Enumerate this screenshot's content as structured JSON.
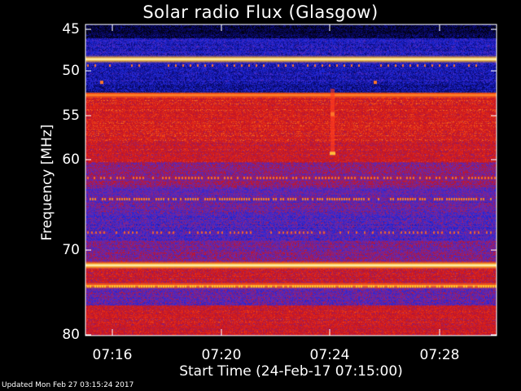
{
  "chart_data": {
    "type": "heatmap",
    "title": "Solar radio Flux (Glasgow)",
    "xlabel": "Start Time (24-Feb-17 07:15:00)",
    "ylabel": "Frequency [MHz]",
    "ylim": [
      45,
      80
    ],
    "y_ticks": [
      "45",
      "50",
      "55",
      "60",
      "70",
      "80"
    ],
    "x_ticks": [
      "07:16",
      "07:20",
      "07:24",
      "07:28"
    ],
    "xlim": [
      "07:15:00",
      "07:30:00"
    ],
    "colormap": "black-blue-red-yellow-white",
    "features": [
      {
        "frequency_mhz": 48.6,
        "intensity": "very-high"
      },
      {
        "frequency_mhz": 52.7,
        "intensity": "high"
      },
      {
        "frequency_mhz": 71.8,
        "intensity": "very-high"
      },
      {
        "frequency_mhz": 74.2,
        "intensity": "high"
      }
    ]
  },
  "footer": {
    "updated": "Updated Mon Feb 27 03:15:24 2017"
  },
  "colors": {
    "background": "#000000",
    "low": "#0a0a8c",
    "mid": "#c81818",
    "high": "#ffd040",
    "peak": "#ffffff"
  }
}
